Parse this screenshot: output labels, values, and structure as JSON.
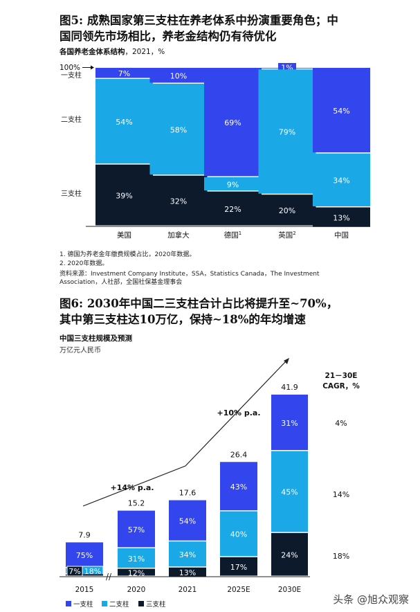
{
  "fig5": {
    "title_line1": "图5: 成熟国家第三支柱在养老体系中扮演重要角色；中",
    "title_line2": "国同领先市场相比，养老金结构仍有待优化",
    "subtitle": "各国养老金体系结构",
    "subtitle_suffix": "，2021，%",
    "note1": "1.  德国为养老金年缴费规模占比，2020年数据。",
    "note2": "2.  2020年数据。",
    "source_line1": "资料来源：Investment Company Institute，SSA，Statistics Canada，The Investment",
    "source_line2": "Association，人社部，全国社保基金理事会"
  },
  "fig6": {
    "title_line1": "图6: 2030年中国二三支柱合计占比将提升至~70%，",
    "title_line2": "其中第三支柱达10万亿，保持~18%的年均增速",
    "subtitle": "中国三支柱规模及预测",
    "unit": "万亿元人民币"
  },
  "colors": {
    "pillar1": "#3346ee",
    "pillar2": "#1aa8e6",
    "pillar3": "#0c1a2b",
    "arrow": "#222222"
  },
  "chart_data": [
    {
      "type": "bar",
      "stacked": true,
      "percent": true,
      "categories": [
        "美国",
        "加拿大",
        "德国",
        "英国",
        "中国"
      ],
      "category_notes": [
        "",
        "",
        "1",
        "2",
        ""
      ],
      "series": [
        {
          "name": "一支柱",
          "values": [
            7,
            10,
            69,
            1,
            54
          ]
        },
        {
          "name": "二支柱",
          "values": [
            54,
            58,
            9,
            79,
            34
          ]
        },
        {
          "name": "三支柱",
          "values": [
            39,
            32,
            22,
            20,
            13
          ]
        }
      ],
      "axis_marker": "100%",
      "data_labels": [
        [
          "7%",
          "10%",
          "69%",
          "1%",
          "54%"
        ],
        [
          "54%",
          "58%",
          "9%",
          "79%",
          "34%"
        ],
        [
          "39%",
          "32%",
          "22%",
          "20%",
          "13%"
        ]
      ],
      "ylim": [
        0,
        100
      ]
    },
    {
      "type": "bar",
      "stacked": true,
      "categories": [
        "2015",
        "2020",
        "2021",
        "2025E",
        "2030E"
      ],
      "totals": [
        7.9,
        15.2,
        17.6,
        26.4,
        41.9
      ],
      "total_labels": [
        "7.9",
        "15.2",
        "17.6",
        "26.4",
        "41.9"
      ],
      "series": [
        {
          "name": "一支柱",
          "percent": [
            75,
            57,
            54,
            43,
            31
          ]
        },
        {
          "name": "二支柱",
          "percent": [
            18,
            31,
            34,
            40,
            45
          ]
        },
        {
          "name": "三支柱",
          "percent": [
            7,
            12,
            13,
            17,
            24
          ]
        }
      ],
      "data_labels": [
        [
          "75%",
          "57%",
          "54%",
          "43%",
          "31%"
        ],
        [
          "18%",
          "31%",
          "34%",
          "40%",
          "45%"
        ],
        [
          "7%",
          "12%",
          "13%",
          "17%",
          "24%"
        ]
      ],
      "growth_annotations": [
        "+14% p.a.",
        "+10% p.a."
      ],
      "cagr_header_line1": "21－30E",
      "cagr_header_line2": "CAGR，%",
      "cagr": [
        "4%",
        "14%",
        "18%"
      ],
      "legend": [
        "一支柱",
        "二支柱",
        "三支柱"
      ],
      "legend_position": "bottom-left",
      "axis_break": "//"
    }
  ],
  "watermark": "头条 @旭众观察"
}
